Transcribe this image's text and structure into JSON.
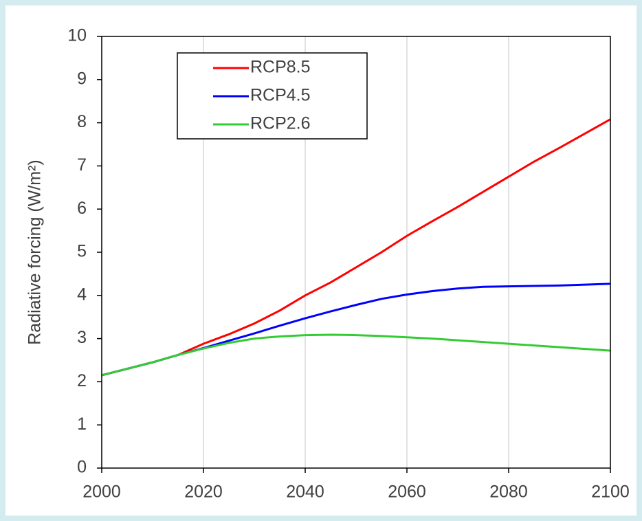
{
  "chart_data": {
    "type": "line",
    "ylabel": "Radiative forcing (W/m²)",
    "x": [
      2000,
      2005,
      2010,
      2015,
      2020,
      2025,
      2030,
      2035,
      2040,
      2045,
      2050,
      2055,
      2060,
      2065,
      2070,
      2075,
      2080,
      2085,
      2090,
      2095,
      2100
    ],
    "series": [
      {
        "name": "RCP8.5",
        "color": "#ff0000",
        "values": [
          2.15,
          2.3,
          2.45,
          2.62,
          2.88,
          3.1,
          3.35,
          3.65,
          4.0,
          4.3,
          4.65,
          5.0,
          5.38,
          5.72,
          6.05,
          6.4,
          6.75,
          7.1,
          7.42,
          7.75,
          8.08
        ]
      },
      {
        "name": "RCP4.5",
        "color": "#0000ff",
        "values": [
          2.15,
          2.3,
          2.45,
          2.62,
          2.78,
          2.95,
          3.12,
          3.3,
          3.47,
          3.63,
          3.78,
          3.92,
          4.02,
          4.1,
          4.16,
          4.2,
          4.21,
          4.22,
          4.23,
          4.25,
          4.27
        ]
      },
      {
        "name": "RCP2.6",
        "color": "#33cc33",
        "values": [
          2.15,
          2.3,
          2.45,
          2.62,
          2.77,
          2.9,
          3.0,
          3.05,
          3.08,
          3.09,
          3.08,
          3.06,
          3.03,
          3.0,
          2.96,
          2.92,
          2.88,
          2.84,
          2.8,
          2.76,
          2.72
        ]
      }
    ],
    "xlim": [
      2000,
      2100
    ],
    "xticks": [
      2000,
      2020,
      2040,
      2060,
      2080,
      2100
    ],
    "ylim": [
      0,
      10
    ],
    "yticks": [
      0,
      1,
      2,
      3,
      4,
      5,
      6,
      7,
      8,
      9,
      10
    ],
    "grid": "x",
    "legend": "upper left"
  }
}
